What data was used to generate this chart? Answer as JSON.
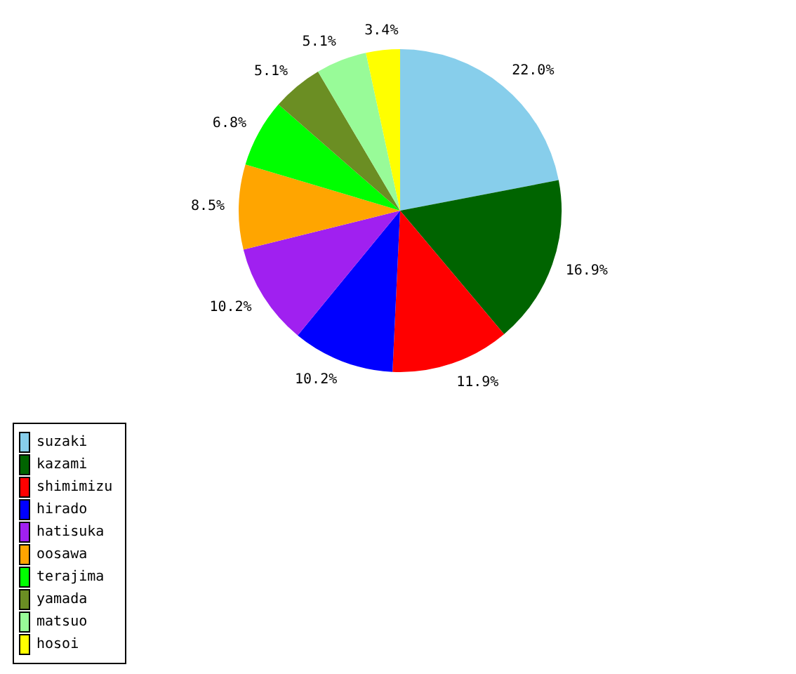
{
  "chart_data": {
    "type": "pie",
    "categories": [
      "suzaki",
      "kazami",
      "shimimizu",
      "hirado",
      "hatisuka",
      "oosawa",
      "terajima",
      "yamada",
      "matsuo",
      "hosoi"
    ],
    "values": [
      22.0,
      16.9,
      11.9,
      10.2,
      10.2,
      8.5,
      6.8,
      5.1,
      5.1,
      3.4
    ],
    "value_labels": [
      "22.0%",
      "16.9%",
      "11.9%",
      "10.2%",
      "10.2%",
      "8.5%",
      "6.8%",
      "5.1%",
      "5.1%",
      "3.4%"
    ],
    "colors": [
      "#87ceeb",
      "#006400",
      "#ff0000",
      "#0000ff",
      "#a020f0",
      "#ffa500",
      "#00ff00",
      "#6b8e23",
      "#98fb98",
      "#ffff00"
    ],
    "legend": "bottom left"
  }
}
